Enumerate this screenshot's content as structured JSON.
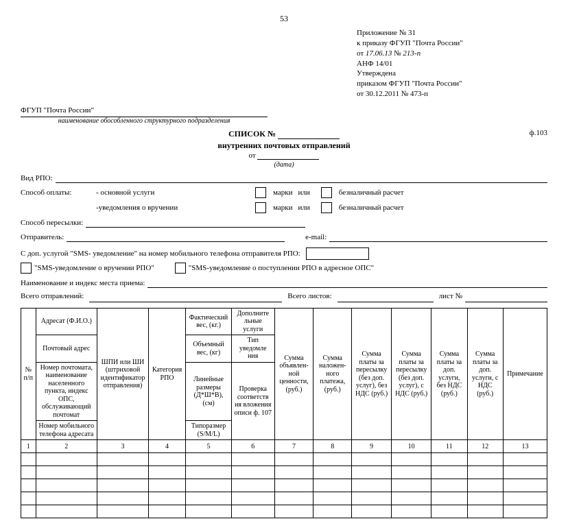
{
  "page_number": "53",
  "approval": {
    "l1": "Приложение № 31",
    "l2": "к приказу ФГУП \"Почта России\"",
    "l3_prefix": "от",
    "l3_date": "17.06.13",
    "l3_num_prefix": "№",
    "l3_num": "213-п",
    "l4": "АНФ 14/01",
    "l5": "Утверждена",
    "l6": "приказом ФГУП \"Почта России\"",
    "l7": "от 30.12.2011 № 473-п"
  },
  "org_name": "ФГУП \"Почта России\"",
  "org_hint": "наименование обособленного структурного подразделения",
  "form_code": "ф.103",
  "title": {
    "l1": "СПИСОК №",
    "l2": "внутренних почтовых отправлений",
    "from": "от",
    "date_hint": "(дата)"
  },
  "fields": {
    "vid_rpo": "Вид РПО:",
    "pay_method": "Способ оплаты:",
    "pay_main": "- основной услуги",
    "pay_notice": "-уведомления о вручении",
    "stamps": "марки",
    "or": "или",
    "cashless": "безналичный расчет",
    "ship_method": "Способ пересылки:",
    "sender": "Отправитель:",
    "email": "e-mail:",
    "sms_line": "С доп. услугой \"SMS- уведомление\" на номер мобильного телефона отправителя РПО:",
    "sms_opt1": "\"SMS-уведомление о вручении РПО\"",
    "sms_opt2": "\"SMS-уведомление о поступлении РПО в адресное ОПС\"",
    "place": "Наименование и индекс места приема:",
    "total_sent": "Всего отправлений:",
    "total_sheets": "Всего листов:",
    "sheet_no": "лист №"
  },
  "table": {
    "h_n": "№ п/п",
    "h2_a": "Адресат (Ф.И.О.)",
    "h2_b": "Почтовый адрес",
    "h2_c": "Номер почтомата, наименование населенного пункта, индекс ОПС, обслуживающий почтомат",
    "h2_d": "Номер мобильного телефона адресата",
    "h3": "ШПИ или ШИ (штриховой идентификатор отправления)",
    "h4": "Категория РПО",
    "h5_a": "Фактический вес, (кг.)",
    "h5_b": "Объемный вес, (кг)",
    "h5_c": "Линейные размеры (Д*Ш*В), (см)",
    "h5_d": "Типоразмер (S/M/L)",
    "h6_a": "Дополните льные услуги",
    "h6_b": "Тип уведомле ния",
    "h6_c": "Проверка соответств ия вложения описи ф. 107",
    "h7": "Сумма объявлен-ной ценности, (руб.)",
    "h8": "Сумма наложен-ного платежа, (руб.)",
    "h9": "Сумма платы за пересылку (без доп. услуг), без НДС (руб.)",
    "h10": "Сумма платы за пересылку (без доп. услуг), с НДС (руб.)",
    "h11": "Сумма платы за доп. услуги, без НДС (руб.)",
    "h12": "Сумма платы за доп. услуги, с НДС (руб.)",
    "h13": "Примечание",
    "nums": [
      "1",
      "2",
      "3",
      "4",
      "5",
      "6",
      "7",
      "8",
      "9",
      "10",
      "11",
      "12",
      "13"
    ],
    "blank_rows": 5
  }
}
